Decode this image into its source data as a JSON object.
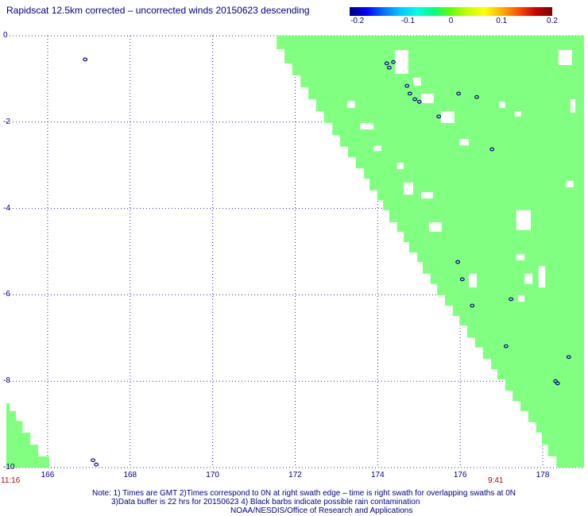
{
  "title": "Rapidscat 12.5km corrected – uncorrected winds 20150623 descending",
  "text_color": "#00007f",
  "colorbar": {
    "tick_labels": [
      "-0.2",
      "-0.1",
      "0",
      "0.1",
      "0.2"
    ],
    "range": [
      -0.2,
      0.2
    ],
    "colors": [
      "#00007f",
      "#0000ff",
      "#0070ff",
      "#00c8ff",
      "#00ffe0",
      "#00ff80",
      "#60ff00",
      "#c8ff00",
      "#ffff00",
      "#ffb000",
      "#ff5000",
      "#d00000",
      "#7f0000"
    ]
  },
  "map": {
    "lon_range": [
      165,
      179
    ],
    "lat_range": [
      -10,
      0
    ],
    "x_ticks": [
      "166",
      "168",
      "170",
      "172",
      "174",
      "176",
      "178"
    ],
    "y_ticks": [
      "0",
      "-2",
      "-4",
      "-6",
      "-8",
      "-10"
    ],
    "swath_color": "#80ff80",
    "no_data_color": "#ffffff",
    "rain_flag_color": "#00007f",
    "gridline_color": "#2a2aa8",
    "swath_main_left_edge": [
      [
        171.55,
        0
      ],
      [
        171.74,
        -0.31
      ],
      [
        171.93,
        -0.64
      ],
      [
        172.13,
        -0.92
      ],
      [
        172.32,
        -1.19
      ],
      [
        172.51,
        -1.47
      ],
      [
        172.7,
        -1.75
      ],
      [
        172.9,
        -2.02
      ],
      [
        173.09,
        -2.3
      ],
      [
        173.28,
        -2.57
      ],
      [
        173.47,
        -2.81
      ],
      [
        173.67,
        -3.07
      ],
      [
        173.8,
        -3.31
      ],
      [
        173.99,
        -3.58
      ],
      [
        174.13,
        -3.81
      ],
      [
        174.28,
        -4.04
      ],
      [
        174.47,
        -4.32
      ],
      [
        174.63,
        -4.54
      ],
      [
        174.76,
        -4.78
      ],
      [
        174.96,
        -5.02
      ],
      [
        175.09,
        -5.24
      ],
      [
        175.28,
        -5.51
      ],
      [
        175.44,
        -5.75
      ],
      [
        175.63,
        -6.01
      ],
      [
        175.82,
        -6.25
      ],
      [
        175.98,
        -6.49
      ],
      [
        176.17,
        -6.71
      ],
      [
        176.36,
        -6.99
      ],
      [
        176.55,
        -7.22
      ],
      [
        176.75,
        -7.48
      ],
      [
        176.9,
        -7.72
      ],
      [
        177.09,
        -7.96
      ],
      [
        177.27,
        -8.22
      ],
      [
        177.46,
        -8.46
      ],
      [
        177.65,
        -8.69
      ],
      [
        177.84,
        -8.95
      ],
      [
        177.98,
        -9.19
      ],
      [
        178.13,
        -9.47
      ],
      [
        178.33,
        -9.74
      ]
    ],
    "swath_west_right_edge": [
      [
        165.08,
        -8.51
      ],
      [
        165.23,
        -8.69
      ],
      [
        165.39,
        -8.92
      ],
      [
        165.58,
        -9.19
      ],
      [
        165.77,
        -9.47
      ],
      [
        166.04,
        -9.74
      ]
    ],
    "no_data_cells": [
      [
        178.38,
        -0.33,
        178.71,
        -0.68
      ],
      [
        174.42,
        -0.33,
        174.74,
        -0.88
      ],
      [
        174.86,
        -0.97,
        175.05,
        -1.16
      ],
      [
        175.05,
        -1.34,
        175.36,
        -1.56
      ],
      [
        175.53,
        -1.75,
        175.86,
        -2.02
      ],
      [
        173.26,
        -1.51,
        173.45,
        -1.67
      ],
      [
        173.57,
        -2.02,
        173.9,
        -2.17
      ],
      [
        176.94,
        -1.53,
        177.09,
        -1.67
      ],
      [
        177.32,
        -1.75,
        177.48,
        -1.87
      ],
      [
        178.67,
        -1.47,
        178.79,
        -1.78
      ],
      [
        175.98,
        -2.39,
        176.21,
        -2.54
      ],
      [
        173.9,
        -2.54,
        174.09,
        -2.67
      ],
      [
        174.47,
        -2.94,
        174.63,
        -3.09
      ],
      [
        174.63,
        -3.4,
        174.86,
        -3.68
      ],
      [
        175.05,
        -3.62,
        175.34,
        -3.77
      ],
      [
        175.24,
        -4.32,
        175.55,
        -4.54
      ],
      [
        178.56,
        -3.36,
        178.75,
        -3.51
      ],
      [
        177.36,
        -4.04,
        177.71,
        -4.5
      ],
      [
        176.21,
        -5.51,
        176.4,
        -5.83
      ],
      [
        177.56,
        -5.51,
        177.75,
        -5.75
      ],
      [
        177.9,
        -5.33,
        178.06,
        -5.83
      ],
      [
        177.36,
        -5.06,
        177.56,
        -5.2
      ],
      [
        177.4,
        -6.01,
        177.56,
        -6.16
      ]
    ],
    "rain_flags": [
      [
        166.91,
        -0.55
      ],
      [
        174.22,
        -0.64
      ],
      [
        174.28,
        -0.74
      ],
      [
        174.38,
        -0.61
      ],
      [
        174.71,
        -1.16
      ],
      [
        174.78,
        -1.34
      ],
      [
        174.9,
        -1.47
      ],
      [
        175.01,
        -1.53
      ],
      [
        175.48,
        -1.87
      ],
      [
        175.96,
        -1.34
      ],
      [
        176.4,
        -1.42
      ],
      [
        176.77,
        -2.63
      ],
      [
        175.94,
        -5.24
      ],
      [
        176.05,
        -5.64
      ],
      [
        176.29,
        -6.25
      ],
      [
        177.23,
        -6.1
      ],
      [
        177.11,
        -7.19
      ],
      [
        178.63,
        -7.44
      ],
      [
        178.31,
        -8.0
      ],
      [
        178.36,
        -8.05
      ],
      [
        167.1,
        -9.83
      ],
      [
        167.18,
        -9.93
      ]
    ]
  },
  "times": {
    "west_swath": "11:16",
    "east_swath": "9:41",
    "color": "#a01010"
  },
  "notes": [
    "Note: 1) Times are GMT 2)Times correspond to 0N at right swath edge – time is right swath for overlapping swaths at 0N",
    "3)Data buffer is 22 hrs for 20150623 4) Black barbs indicate possible rain contamination",
    "NOAA/NESDIS/Office of Research and Applications"
  ]
}
